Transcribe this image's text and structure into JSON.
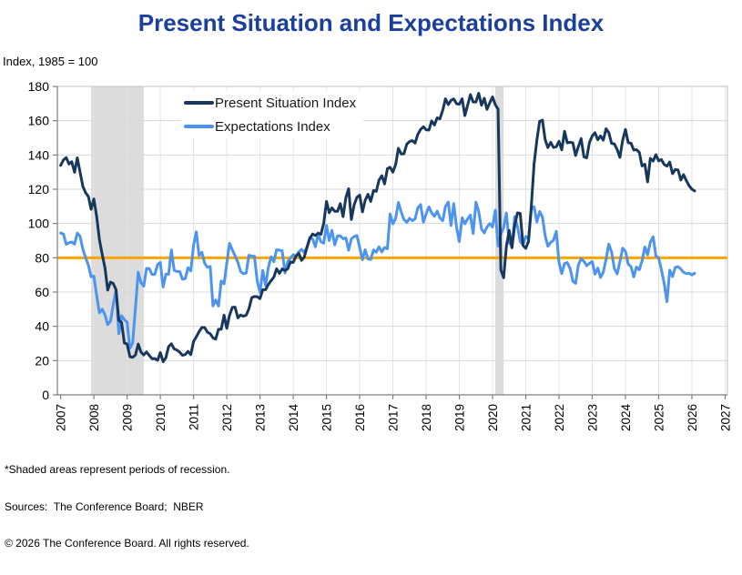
{
  "title": "Present Situation and Expectations Index",
  "subtitle": "Index, 1985 = 100",
  "footnotes": [
    "*Shaded areas represent periods of recession.",
    "Sources:  The Conference Board;  NBER",
    "© 2026 The Conference Board. All rights reserved."
  ],
  "colors": {
    "title": "#1B3F9C",
    "axis": "#7F7F7F",
    "tick_label": "#000000",
    "grid_horizontal": "#D9D9D9",
    "grid_vertical": "#E4E4E4",
    "plot_border": "#C0C0C0",
    "recession_band": "#DCDCDC",
    "benchmark_line": "#FFA500"
  },
  "chart_data": {
    "type": "line",
    "title": "Present Situation and Expectations Index",
    "ylabel": "Index, 1985 = 100",
    "xlabel": "",
    "x_start_year": 2007.0,
    "x_interval": "monthly",
    "xlim": [
      2007,
      2027
    ],
    "ylim": [
      0,
      180
    ],
    "y_ticks": [
      0,
      20,
      40,
      60,
      80,
      100,
      120,
      140,
      160,
      180
    ],
    "x_ticks": [
      2007,
      2008,
      2009,
      2010,
      2011,
      2012,
      2013,
      2014,
      2015,
      2016,
      2017,
      2018,
      2019,
      2020,
      2021,
      2022,
      2023,
      2024,
      2025,
      2026,
      2027
    ],
    "grid": true,
    "legend_position": "upper-left-inside",
    "benchmark_value": 80,
    "recessions": [
      [
        2007.917,
        2009.5
      ],
      [
        2020.083,
        2020.333
      ]
    ],
    "recession_note": "Shaded areas represent periods of recession",
    "series": [
      {
        "name": "Present Situation Index",
        "color": "#17375D",
        "values": [
          133.9,
          137.1,
          138.5,
          134.7,
          136.1,
          129.9,
          138.3,
          130.1,
          121.7,
          118.0,
          115.7,
          108.3,
          114.3,
          104.0,
          90.6,
          81.9,
          74.2,
          61.1,
          65.8,
          65.0,
          61.2,
          43.5,
          42.3,
          30.2,
          29.7,
          22.3,
          21.9,
          23.3,
          29.7,
          25.0,
          23.3,
          25.0,
          23.0,
          21.1,
          21.2,
          20.2,
          24.7,
          19.4,
          21.7,
          28.2,
          29.8,
          26.8,
          26.1,
          24.9,
          23.1,
          23.5,
          25.4,
          23.5,
          31.1,
          33.8,
          36.9,
          39.3,
          39.3,
          36.6,
          35.7,
          33.3,
          32.5,
          38.3,
          38.3,
          46.5,
          38.8,
          46.4,
          51.0,
          51.2,
          44.9,
          46.6,
          45.9,
          46.5,
          50.2,
          56.7,
          57.4,
          57.3,
          56.2,
          61.4,
          61.4,
          64.4,
          66.7,
          68.7,
          73.6,
          70.9,
          73.5,
          72.6,
          73.5,
          77.5,
          77.3,
          81.0,
          82.5,
          78.5,
          80.4,
          86.3,
          91.3,
          93.9,
          93.0,
          94.4,
          93.7,
          99.9,
          112.9,
          106.3,
          109.1,
          107.1,
          107.1,
          111.6,
          104.0,
          115.1,
          120.3,
          102.3,
          110.9,
          115.3,
          116.6,
          106.8,
          113.5,
          117.1,
          112.9,
          119.3,
          118.8,
          125.3,
          127.9,
          123.1,
          132.0,
          132.8,
          130.0,
          134.4,
          143.9,
          140.6,
          140.7,
          146.3,
          147.8,
          148.4,
          146.9,
          152.0,
          154.9,
          156.5,
          154.7,
          154.5,
          159.9,
          157.5,
          161.7,
          161.1,
          166.1,
          172.8,
          169.4,
          171.9,
          172.7,
          169.9,
          169.6,
          172.8,
          163.0,
          169.0,
          175.2,
          170.9,
          170.9,
          176.0,
          169.0,
          173.1,
          166.6,
          170.5,
          173.9,
          169.3,
          166.7,
          73.0,
          68.4,
          86.7,
          95.9,
          85.8,
          98.9,
          106.2,
          105.9,
          87.2,
          85.5,
          89.6,
          110.1,
          134.7,
          148.7,
          159.6,
          160.3,
          148.9,
          144.3,
          147.4,
          144.4,
          144.8,
          148.0,
          143.0,
          153.8,
          147.1,
          147.4,
          147.1,
          139.7,
          144.9,
          149.6,
          138.9,
          138.3,
          147.2,
          151.1,
          153.0,
          148.9,
          151.1,
          148.6,
          155.3,
          153.0,
          146.7,
          146.5,
          143.1,
          138.6,
          148.5,
          154.9,
          147.2,
          146.8,
          142.9,
          143.1,
          141.5,
          133.6,
          134.6,
          124.3,
          138.0,
          136.4,
          140.2,
          136.5,
          137.3,
          134.5,
          133.5,
          135.9,
          129.1,
          131.5,
          131.2,
          125.4,
          128.5,
          125.0,
          122.0,
          120.0,
          119.0
        ]
      },
      {
        "name": "Expectations Index",
        "color": "#4D93F0",
        "values": [
          94.4,
          93.8,
          87.9,
          88.8,
          89.2,
          88.0,
          94.4,
          92.6,
          85.0,
          80.1,
          75.6,
          68.9,
          69.3,
          58.0,
          47.9,
          50.0,
          46.7,
          41.0,
          43.0,
          52.8,
          61.5,
          35.7,
          46.2,
          43.8,
          42.5,
          27.3,
          30.2,
          51.0,
          71.5,
          65.5,
          63.4,
          73.8,
          73.7,
          70.3,
          70.3,
          75.9,
          77.3,
          62.9,
          70.4,
          70.4,
          84.6,
          72.7,
          72.0,
          72.0,
          67.5,
          67.8,
          74.2,
          72.3,
          87.3,
          95.1,
          81.3,
          83.2,
          76.7,
          74.5,
          74.9,
          51.9,
          55.4,
          51.8,
          66.4,
          64.8,
          76.7,
          88.4,
          84.6,
          81.1,
          77.3,
          72.0,
          70.7,
          71.1,
          81.5,
          80.9,
          80.9,
          66.5,
          59.9,
          72.6,
          63.7,
          74.3,
          80.6,
          77.7,
          84.7,
          84.4,
          84.1,
          71.1,
          77.8,
          79.8,
          81.8,
          80.8,
          83.5,
          84.9,
          83.2,
          86.4,
          91.9,
          90.9,
          86.4,
          93.7,
          89.3,
          88.5,
          98.9,
          90.0,
          96.0,
          87.5,
          92.8,
          92.8,
          91.1,
          91.6,
          84.4,
          91.0,
          92.4,
          93.0,
          85.9,
          78.9,
          84.7,
          79.3,
          79.0,
          84.6,
          83.3,
          86.4,
          83.4,
          86.0,
          85.2,
          105.5,
          99.8,
          103.0,
          112.3,
          106.7,
          102.3,
          100.6,
          103.0,
          101.7,
          102.6,
          109.1,
          111.0,
          100.8,
          105.5,
          109.7,
          106.2,
          104.3,
          107.2,
          103.2,
          101.7,
          110.0,
          112.5,
          98.8,
          111.6,
          97.7,
          89.4,
          103.4,
          99.8,
          102.7,
          105.0,
          94.1,
          112.4,
          107.0,
          96.8,
          94.5,
          97.9,
          100.0,
          98.0,
          107.8,
          86.8,
          93.8,
          97.6,
          106.1,
          88.9,
          86.6,
          104.0,
          98.2,
          89.5,
          87.5,
          92.5,
          90.9,
          108.3,
          109.8,
          100.9,
          107.0,
          103.8,
          92.8,
          86.7,
          89.0,
          90.2,
          95.4,
          77.3,
          70.8,
          76.6,
          77.2,
          73.7,
          66.4,
          65.1,
          75.8,
          79.5,
          77.9,
          75.4,
          76.7,
          77.8,
          70.4,
          74.0,
          68.5,
          71.5,
          79.3,
          88.0,
          83.3,
          73.7,
          70.6,
          77.8,
          85.6,
          83.8,
          76.3,
          74.8,
          68.8,
          74.6,
          73.0,
          78.2,
          86.3,
          81.7,
          89.1,
          92.3,
          81.1,
          79.8,
          72.9,
          65.2,
          54.4,
          72.8,
          69.0,
          74.4,
          74.8,
          73.4,
          71.5,
          70.7,
          71.0,
          70.0,
          71.0
        ]
      }
    ]
  }
}
